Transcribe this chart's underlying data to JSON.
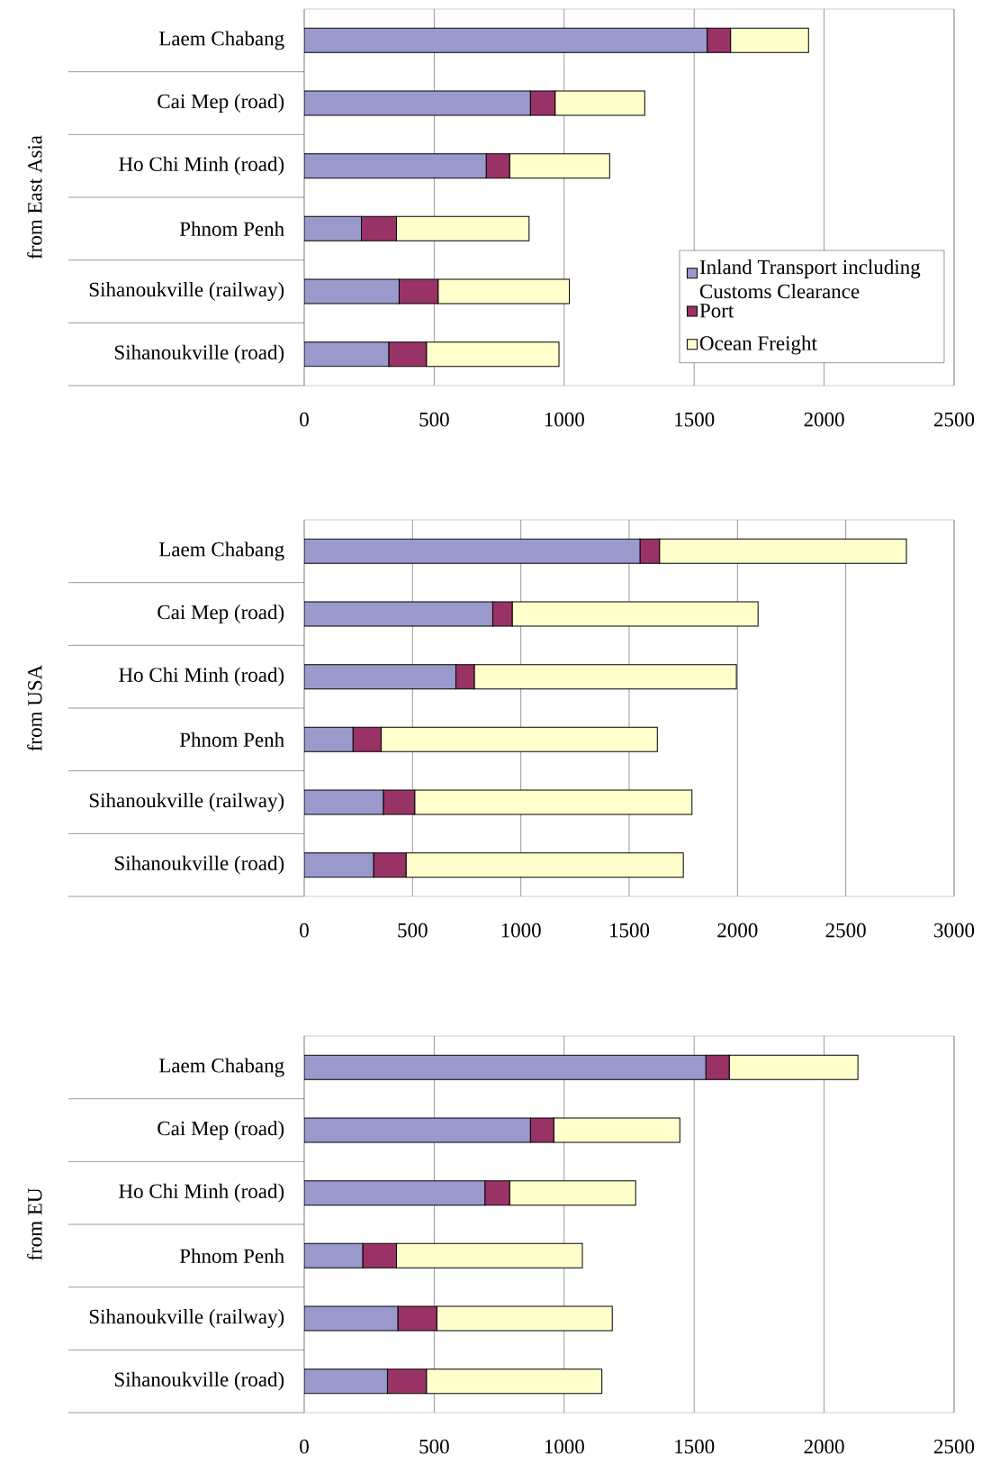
{
  "chart_data": [
    {
      "type": "bar",
      "orientation": "horizontal",
      "stacked": true,
      "ylabel": "from East Asia",
      "categories": [
        "Laem Chabang",
        "Cai Mep (road)",
        "Ho Chi Minh (road)",
        "Phnom Penh",
        "Sihanoukville (railway)",
        "Sihanoukville (road)"
      ],
      "xlim": [
        0,
        2500
      ],
      "xticks": [
        0,
        500,
        1000,
        1500,
        2000,
        2500
      ],
      "grid": "x",
      "legend": "right",
      "series": [
        {
          "name": "Inland Transport including Customs Clearance",
          "color": "#9999cc",
          "values": [
            1550,
            870,
            700,
            220,
            365,
            325
          ]
        },
        {
          "name": "Port",
          "color": "#993366",
          "values": [
            90,
            95,
            90,
            135,
            150,
            145
          ]
        },
        {
          "name": "Ocean Freight",
          "color": "#ffffcc",
          "values": [
            300,
            345,
            385,
            510,
            505,
            510
          ]
        }
      ]
    },
    {
      "type": "bar",
      "orientation": "horizontal",
      "stacked": true,
      "ylabel": "from USA",
      "categories": [
        "Laem Chabang",
        "Cai Mep (road)",
        "Ho Chi Minh (road)",
        "Phnom Penh",
        "Sihanoukville (railway)",
        "Sihanoukville (road)"
      ],
      "xlim": [
        0,
        3000
      ],
      "xticks": [
        0,
        500,
        1000,
        1500,
        2000,
        2500,
        3000
      ],
      "grid": "x",
      "series": [
        {
          "color": "#9999cc",
          "values": [
            1550,
            870,
            700,
            225,
            365,
            320
          ]
        },
        {
          "color": "#993366",
          "values": [
            90,
            90,
            85,
            130,
            145,
            150
          ]
        },
        {
          "color": "#ffffcc",
          "values": [
            1140,
            1135,
            1210,
            1275,
            1280,
            1280
          ]
        }
      ]
    },
    {
      "type": "bar",
      "orientation": "horizontal",
      "stacked": true,
      "ylabel": "from EU",
      "categories": [
        "Laem Chabang",
        "Cai Mep (road)",
        "Ho Chi Minh (road)",
        "Phnom Penh",
        "Sihanoukville (railway)",
        "Sihanoukville (road)"
      ],
      "xlim": [
        0,
        2500
      ],
      "xticks": [
        0,
        500,
        1000,
        1500,
        2000,
        2500
      ],
      "grid": "x",
      "series": [
        {
          "color": "#9999cc",
          "values": [
            1545,
            870,
            695,
            225,
            360,
            320
          ]
        },
        {
          "color": "#993366",
          "values": [
            90,
            90,
            95,
            130,
            150,
            150
          ]
        },
        {
          "color": "#ffffcc",
          "values": [
            495,
            485,
            485,
            715,
            675,
            675
          ]
        }
      ]
    }
  ]
}
